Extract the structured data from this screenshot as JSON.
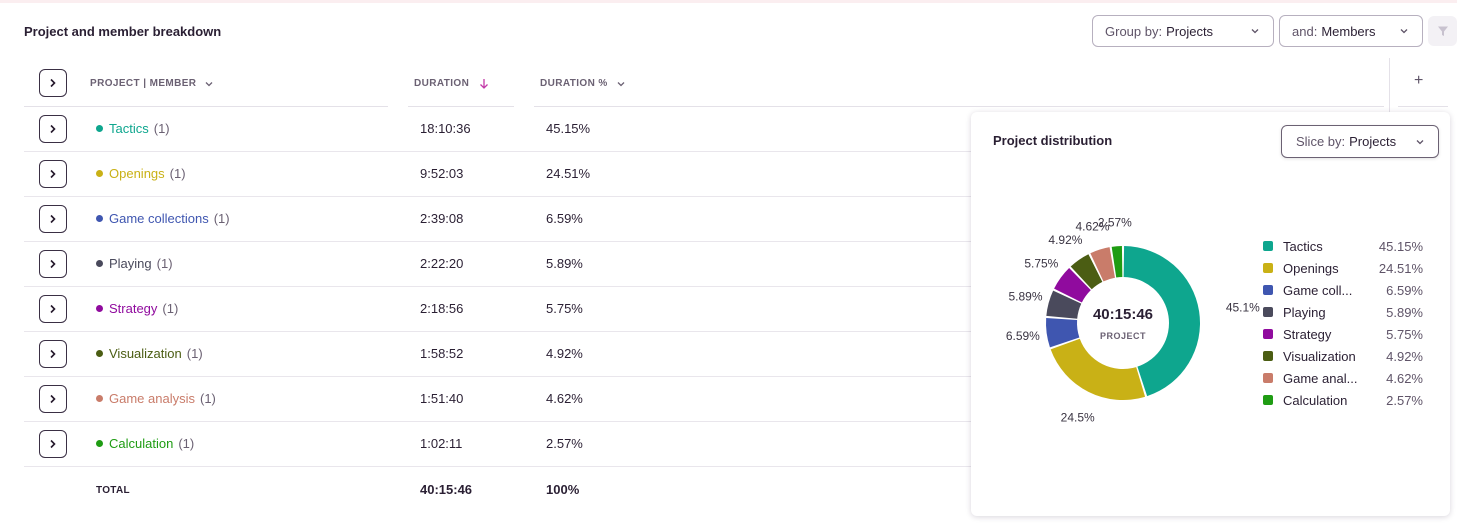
{
  "header": {
    "title": "Project and member breakdown",
    "group_by": {
      "prefix": "Group by:",
      "value": "Projects"
    },
    "and_by": {
      "prefix": "and:",
      "value": "Members"
    }
  },
  "table": {
    "columns": {
      "project": "PROJECT | MEMBER",
      "duration": "DURATION",
      "duration_pct": "DURATION %"
    },
    "rows": [
      {
        "name": "Tactics",
        "count": "(1)",
        "duration": "18:10:36",
        "pct": "45.15%",
        "color": "#0ea68e"
      },
      {
        "name": "Openings",
        "count": "(1)",
        "duration": "9:52:03",
        "pct": "24.51%",
        "color": "#c9b116"
      },
      {
        "name": "Game collections",
        "count": "(1)",
        "duration": "2:39:08",
        "pct": "6.59%",
        "color": "#3f56b0"
      },
      {
        "name": "Playing",
        "count": "(1)",
        "duration": "2:22:20",
        "pct": "5.89%",
        "color": "#4a4a5c"
      },
      {
        "name": "Strategy",
        "count": "(1)",
        "duration": "2:18:56",
        "pct": "5.75%",
        "color": "#900b9e"
      },
      {
        "name": "Visualization",
        "count": "(1)",
        "duration": "1:58:52",
        "pct": "4.92%",
        "color": "#4b5d13"
      },
      {
        "name": "Game analysis",
        "count": "(1)",
        "duration": "1:51:40",
        "pct": "4.62%",
        "color": "#c97c6a"
      },
      {
        "name": "Calculation",
        "count": "(1)",
        "duration": "1:02:11",
        "pct": "2.57%",
        "color": "#1f9c13"
      }
    ],
    "total": {
      "label": "TOTAL",
      "duration": "40:15:46",
      "pct": "100%"
    },
    "add_column": "+"
  },
  "panel": {
    "title": "Project distribution",
    "slice_by": {
      "prefix": "Slice by:",
      "value": "Projects"
    },
    "center_value": "40:15:46",
    "center_label": "PROJECT",
    "legend": [
      {
        "name": "Tactics",
        "pct": "45.15%"
      },
      {
        "name": "Openings",
        "pct": "24.51%"
      },
      {
        "name": "Game coll...",
        "pct": "6.59%"
      },
      {
        "name": "Playing",
        "pct": "5.89%"
      },
      {
        "name": "Strategy",
        "pct": "5.75%"
      },
      {
        "name": "Visualization",
        "pct": "4.92%"
      },
      {
        "name": "Game anal...",
        "pct": "4.62%"
      },
      {
        "name": "Calculation",
        "pct": "2.57%"
      }
    ]
  },
  "chart_data": {
    "type": "pie",
    "categories": [
      "Tactics",
      "Openings",
      "Game collections",
      "Playing",
      "Strategy",
      "Visualization",
      "Game analysis",
      "Calculation"
    ],
    "values": [
      45.15,
      24.51,
      6.59,
      5.89,
      5.75,
      4.92,
      4.62,
      2.57
    ],
    "slice_labels": [
      "45.1%",
      "24.5%",
      "6.59%",
      "5.89%",
      "5.75%",
      "4.92%",
      "4.62%",
      "2.57%"
    ],
    "colors": [
      "#0ea68e",
      "#c9b116",
      "#3f56b0",
      "#4a4a5c",
      "#900b9e",
      "#4b5d13",
      "#c97c6a",
      "#1f9c13"
    ]
  }
}
